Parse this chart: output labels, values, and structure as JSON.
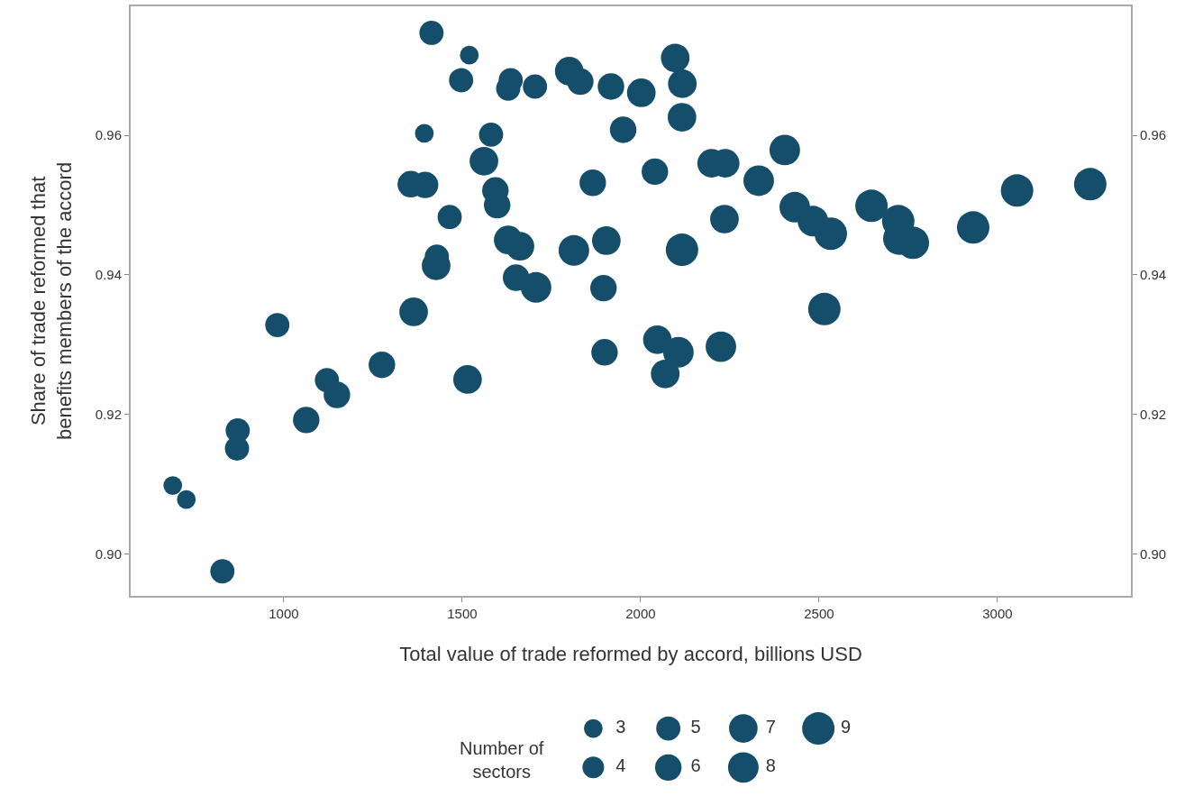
{
  "chart_data": {
    "type": "bubble",
    "xlabel": "Total value of trade reformed by accord, billions USD",
    "ylabel": "Share of trade reformed that benefits members of the accord",
    "legend_title": "Number of sectors",
    "xlim": [
      571,
      3374
    ],
    "xticks": [
      1000,
      1500,
      2000,
      2500,
      3000
    ],
    "ylim": [
      0.894,
      0.9785
    ],
    "yticks": [
      {
        "value": 0.9,
        "label": "0.90"
      },
      {
        "value": 0.92,
        "label": "0.92"
      },
      {
        "value": 0.94,
        "label": "0.94"
      },
      {
        "value": 0.96,
        "label": "0.96"
      }
    ],
    "y2lim": [
      0.894,
      0.9785
    ],
    "y2ticks": [
      {
        "value": 0.9,
        "label": "0.90"
      },
      {
        "value": 0.92,
        "label": "0.92"
      },
      {
        "value": 0.94,
        "label": "0.94"
      },
      {
        "value": 0.96,
        "label": "0.96"
      }
    ],
    "size_legend": [
      3,
      4,
      5,
      6,
      7,
      8,
      9
    ],
    "series": [
      {
        "color": "#154e6b",
        "x": [
          689,
          727,
          828,
          871,
          869,
          982,
          1063,
          1121,
          1149,
          1275,
          1364,
          1356,
          1396,
          1414,
          1394,
          1520,
          1465,
          1429,
          1427,
          1497,
          1515,
          1561,
          1581,
          1593,
          1598,
          1636,
          1629,
          1629,
          1662,
          1651,
          1707,
          1704,
          1800,
          1831,
          1813,
          1866,
          1917,
          1904,
          1896,
          1899,
          1951,
          2002,
          2040,
          2047,
          2069,
          2097,
          2117,
          2116,
          2106,
          2116,
          2199,
          2237,
          2235,
          2225,
          2331,
          2404,
          2432,
          2483,
          2533,
          2515,
          2647,
          2722,
          2725,
          2763,
          2932,
          3055,
          3260
        ],
        "values": [
          0.9098,
          0.9078,
          0.8975,
          0.9177,
          0.9151,
          0.9328,
          0.9192,
          0.9249,
          0.9228,
          0.9271,
          0.9347,
          0.953,
          0.9529,
          0.9747,
          0.9603,
          0.9715,
          0.9483,
          0.9426,
          0.9413,
          0.9679,
          0.925,
          0.9563,
          0.9601,
          0.9521,
          0.95,
          0.9679,
          0.9667,
          0.945,
          0.9441,
          0.9396,
          0.9382,
          0.967,
          0.9692,
          0.9677,
          0.9435,
          0.9532,
          0.967,
          0.9449,
          0.9381,
          0.9289,
          0.9608,
          0.9661,
          0.9548,
          0.9307,
          0.9258,
          0.9711,
          0.9674,
          0.9626,
          0.9289,
          0.9436,
          0.956,
          0.956,
          0.948,
          0.9297,
          0.9535,
          0.9579,
          0.9497,
          0.9477,
          0.9459,
          0.9351,
          0.9499,
          0.9477,
          0.9452,
          0.9446,
          0.9468,
          0.9521,
          0.953
        ],
        "sizes": [
          3,
          3,
          5,
          5,
          5,
          5,
          6,
          5,
          6,
          6,
          7,
          6,
          6,
          5,
          3,
          3,
          5,
          5,
          7,
          5,
          7,
          7,
          5,
          6,
          6,
          5,
          5,
          7,
          7,
          6,
          8,
          5,
          7,
          6,
          8,
          6,
          6,
          7,
          6,
          6,
          6,
          7,
          6,
          7,
          7,
          7,
          7,
          7,
          8,
          9,
          7,
          7,
          7,
          8,
          8,
          8,
          8,
          8,
          9,
          9,
          9,
          9,
          9,
          9,
          9,
          9,
          9
        ]
      }
    ]
  }
}
